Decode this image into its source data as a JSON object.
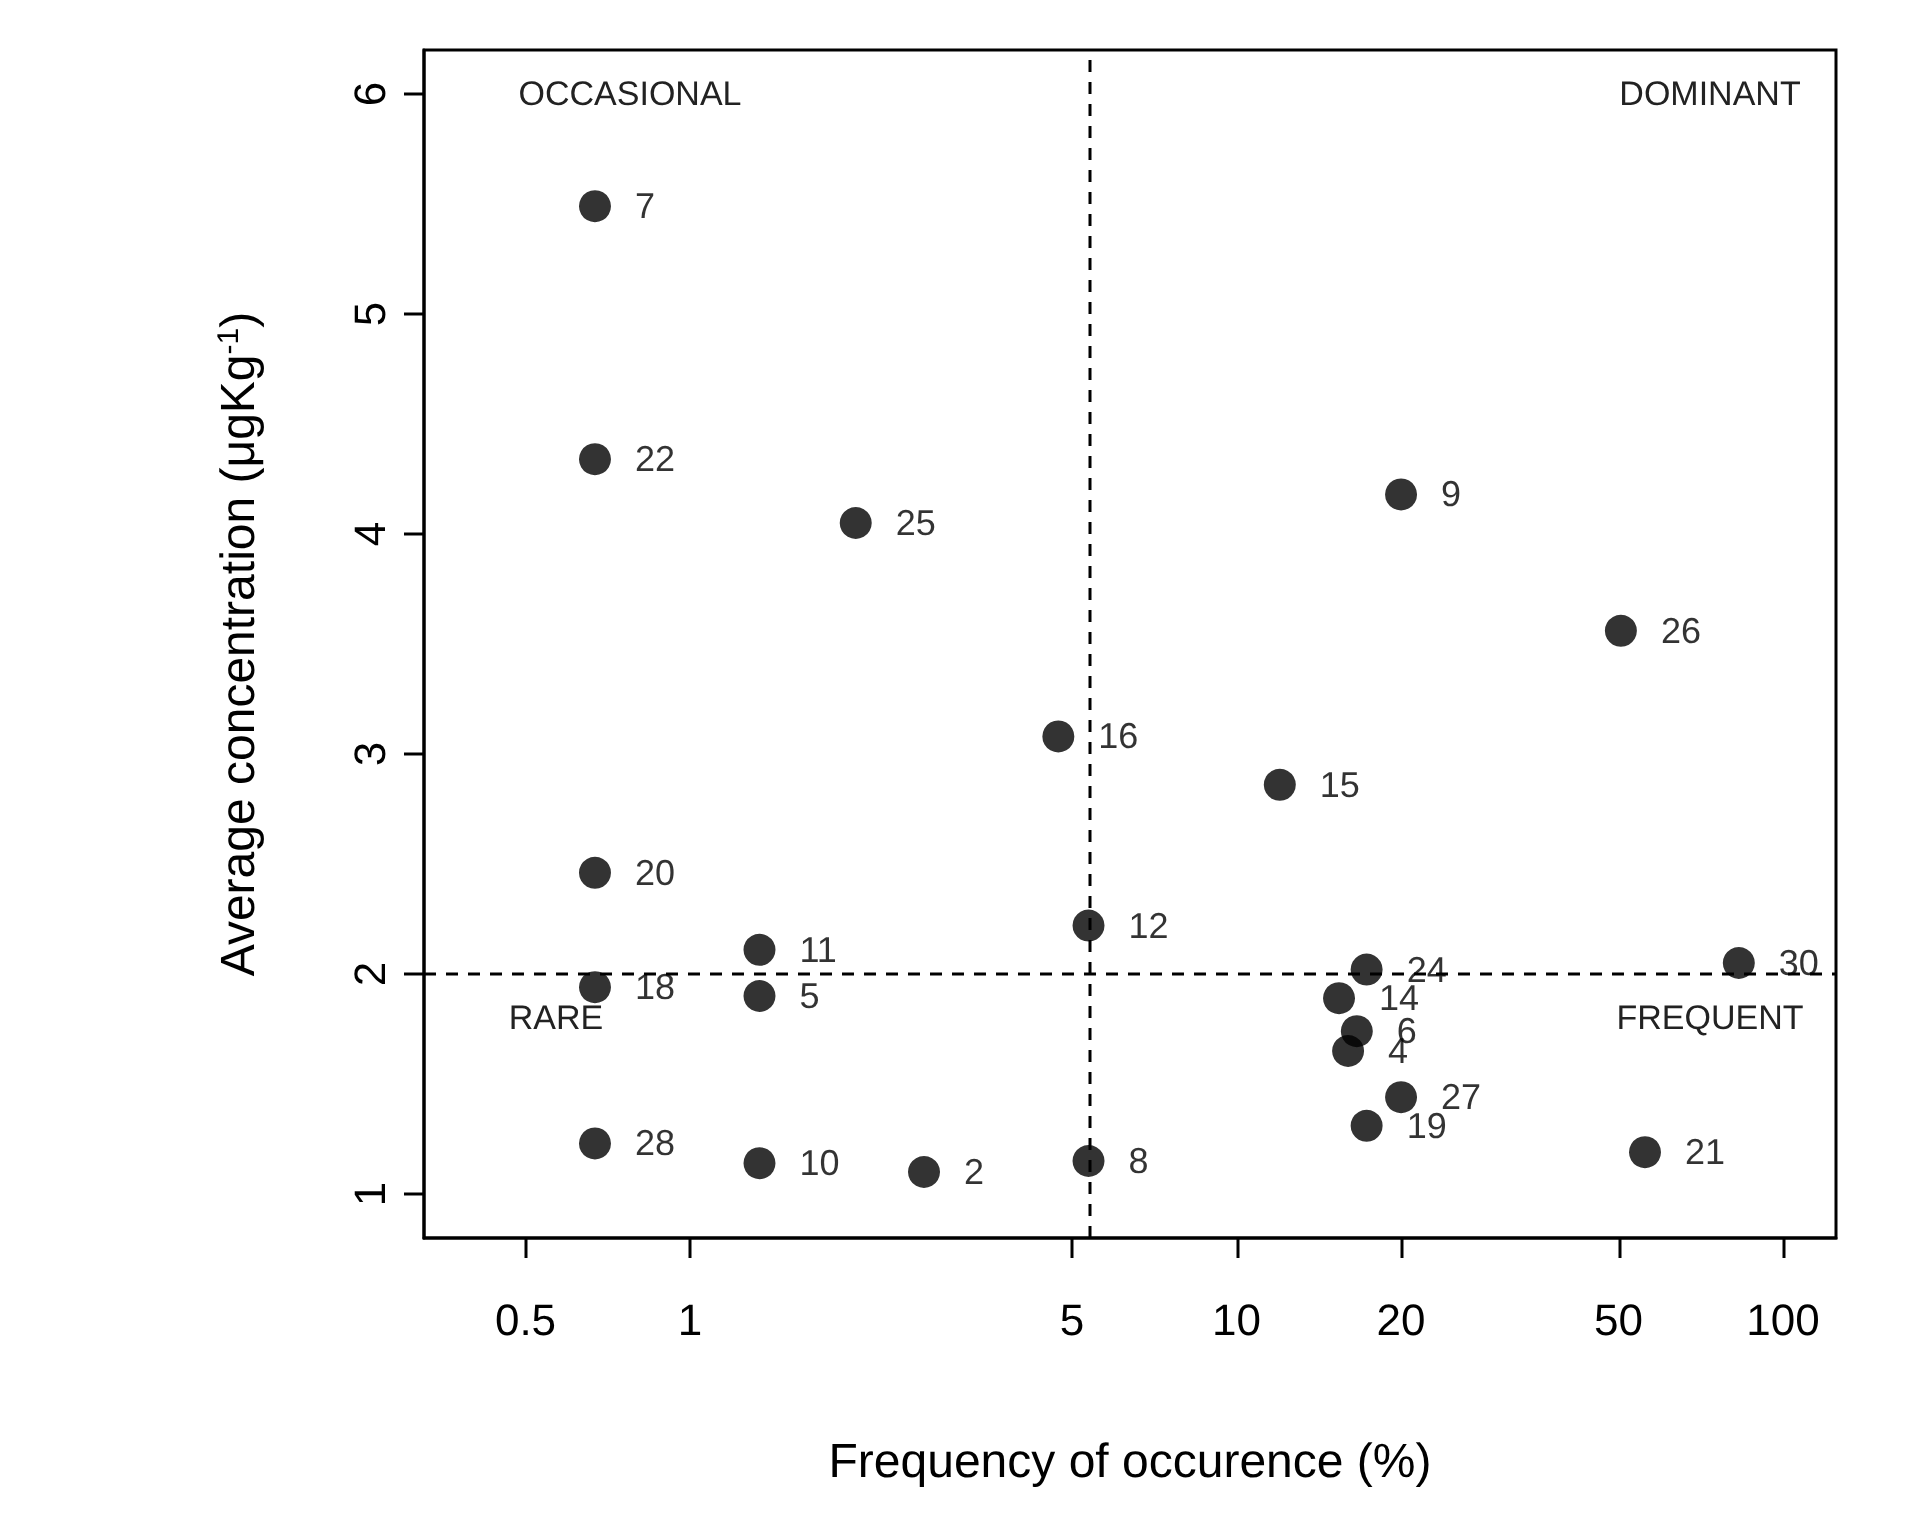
{
  "chart_data": {
    "type": "scatter",
    "xlabel": "Frequency of occurence (%)",
    "ylabel": "Average concentration (μgKg$^{-1}$)",
    "log": "x",
    "marker": "circle",
    "series": [
      {
        "name": "7",
        "color": "#000000",
        "x": [
          0.67
        ],
        "values": [
          5.49
        ]
      },
      {
        "name": "22",
        "color": "#000000",
        "x": [
          0.67
        ],
        "values": [
          4.34
        ]
      },
      {
        "name": "25",
        "color": "#000000",
        "x": [
          2.01
        ],
        "values": [
          4.05
        ]
      },
      {
        "name": "9",
        "color": "#000000",
        "x": [
          20.0
        ],
        "values": [
          4.18
        ]
      },
      {
        "name": "26",
        "color": "#000000",
        "x": [
          50.5
        ],
        "values": [
          3.56
        ]
      },
      {
        "name": "16",
        "color": "#000000",
        "x": [
          4.72
        ],
        "values": [
          3.08
        ]
      },
      {
        "name": "15",
        "color": "#000000",
        "x": [
          12.0
        ],
        "values": [
          2.86
        ]
      },
      {
        "name": "20",
        "color": "#000000",
        "x": [
          0.67
        ],
        "values": [
          2.46
        ]
      },
      {
        "name": "12",
        "color": "#000000",
        "x": [
          5.36
        ],
        "values": [
          2.22
        ]
      },
      {
        "name": "11",
        "color": "#000000",
        "x": [
          1.34
        ],
        "values": [
          2.11
        ]
      },
      {
        "name": "30",
        "color": "#000000",
        "x": [
          83
        ],
        "values": [
          2.05
        ]
      },
      {
        "name": "24",
        "color": "#000000",
        "x": [
          17.3
        ],
        "values": [
          2.02
        ]
      },
      {
        "name": "18",
        "color": "#000000",
        "x": [
          0.67
        ],
        "values": [
          1.94
        ]
      },
      {
        "name": "5",
        "color": "#000000",
        "x": [
          1.34
        ],
        "values": [
          1.9
        ]
      },
      {
        "name": "14",
        "color": "#000000",
        "x": [
          15.4
        ],
        "values": [
          1.89
        ]
      },
      {
        "name": "6",
        "color": "#000000",
        "x": [
          16.6
        ],
        "values": [
          1.74
        ]
      },
      {
        "name": "4",
        "color": "#000000",
        "x": [
          16.0
        ],
        "values": [
          1.65
        ]
      },
      {
        "name": "27",
        "color": "#000000",
        "x": [
          20.0
        ],
        "values": [
          1.44
        ]
      },
      {
        "name": "19",
        "color": "#000000",
        "x": [
          17.3
        ],
        "values": [
          1.31
        ]
      },
      {
        "name": "21",
        "color": "#000000",
        "x": [
          55.9
        ],
        "values": [
          1.19
        ]
      },
      {
        "name": "28",
        "color": "#000000",
        "x": [
          0.67
        ],
        "values": [
          1.23
        ]
      },
      {
        "name": "10",
        "color": "#000000",
        "x": [
          1.34
        ],
        "values": [
          1.14
        ]
      },
      {
        "name": "2",
        "color": "#000000",
        "x": [
          2.68
        ],
        "values": [
          1.1
        ]
      },
      {
        "name": "8",
        "color": "#000000",
        "x": [
          5.36
        ],
        "values": [
          1.15
        ]
      }
    ],
    "xlim": [
      0.326,
      125
    ],
    "xticks": [
      0.5,
      1,
      5,
      10,
      20,
      50,
      100
    ],
    "ylim": [
      0.8,
      6.2
    ],
    "yticks": [
      1,
      2,
      3,
      4,
      5,
      6
    ],
    "ref_lines": [
      {
        "axis": "x",
        "value": 5.36,
        "line_style": "dashed",
        "color": "#000000"
      },
      {
        "axis": "y",
        "value": 2.0,
        "line_style": "dashed",
        "color": "#000000"
      }
    ],
    "annotations": [
      "OCCASIONAL",
      "DOMINANT",
      "RARE",
      "FREQUENT"
    ]
  }
}
